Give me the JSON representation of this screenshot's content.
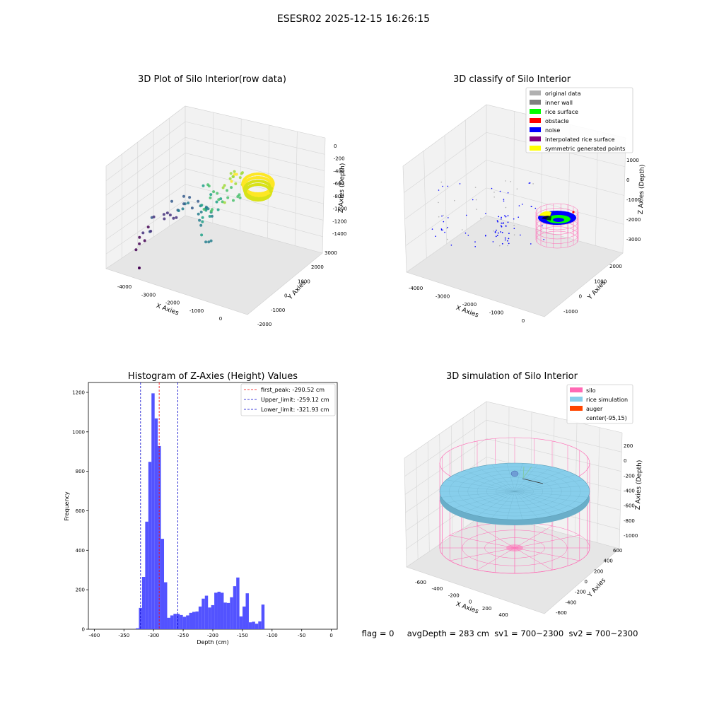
{
  "figure_title": "ESESR02 2025-12-15 16:26:15",
  "status_line": "flag = 0     avgDepth = 283 cm  sv1 = 700~2300  sv2 = 700~2300",
  "chart_data": [
    {
      "type": "scatter3d",
      "title": "3D Plot of Silo Interior(row data)",
      "xlabel": "X Axies",
      "ylabel": "Y Axies",
      "zlabel": "Z Axies (Depth)",
      "x_ticks": [
        "-4000",
        "-3000",
        "-2000",
        "-1000",
        "0"
      ],
      "y_ticks": [
        "-2000",
        "-1000",
        "0",
        "1000",
        "2000",
        "3000"
      ],
      "z_ticks": [
        "0",
        "-200",
        "-400",
        "-600",
        "-800",
        "-1000",
        "-1200",
        "-1400"
      ],
      "colormap": "viridis",
      "xlim": [
        -4500,
        500
      ],
      "ylim": [
        -2000,
        3000
      ],
      "zlim": [
        -1500,
        0
      ]
    },
    {
      "type": "scatter3d",
      "title": "3D classify of Silo Interior",
      "xlabel": "X Axies",
      "ylabel": "Y Axies",
      "zlabel": "Z Axies (Depth)",
      "x_ticks": [
        "-4000",
        "-3000",
        "-2000",
        "-1000",
        "0"
      ],
      "y_ticks": [
        "-1000",
        "0",
        "1000",
        "2000"
      ],
      "z_ticks": [
        "1000",
        "0",
        "-1000",
        "-2000",
        "-3000"
      ],
      "legend_position": "top-right",
      "legend": [
        {
          "label": "original data",
          "color": "#b0b0b0"
        },
        {
          "label": "inner wall",
          "color": "#808080"
        },
        {
          "label": "rice surface",
          "color": "#00ff00"
        },
        {
          "label": "obstacle",
          "color": "#ff0000"
        },
        {
          "label": "noise",
          "color": "#0000ff"
        },
        {
          "label": "interpolated rice surface",
          "color": "#800080"
        },
        {
          "label": "symmetric generated points",
          "color": "#ffff00"
        }
      ]
    },
    {
      "type": "histogram",
      "title": "Histogram of Z-Axies (Height) Values",
      "xlabel": "Depth (cm)",
      "ylabel": "Frequency",
      "xlim": [
        -410,
        10
      ],
      "ylim": [
        0,
        1250
      ],
      "x_ticks": [
        -400,
        -350,
        -300,
        -250,
        -200,
        -150,
        -100,
        -50,
        0
      ],
      "y_ticks": [
        0,
        200,
        400,
        600,
        800,
        1000,
        1200
      ],
      "bar_color": "#4a4aff",
      "bin_start": -330,
      "bin_width": 5.3,
      "counts": [
        5,
        108,
        265,
        545,
        848,
        1195,
        1068,
        928,
        458,
        238,
        58,
        70,
        78,
        78,
        72,
        63,
        70,
        83,
        88,
        90,
        115,
        155,
        170,
        110,
        122,
        185,
        190,
        185,
        135,
        133,
        162,
        218,
        262,
        65,
        115,
        182,
        35,
        38,
        28,
        40,
        125
      ],
      "vlines": [
        {
          "label": "first_peak: -290.52 cm",
          "x": -290.52,
          "color": "#ff0000"
        },
        {
          "label": "Upper_limit: -259.12 cm",
          "x": -259.12,
          "color": "#0000cc"
        },
        {
          "label": "Lower_limit: -321.93 cm",
          "x": -321.93,
          "color": "#0000cc"
        }
      ],
      "legend_position": "top-right"
    },
    {
      "type": "surface3d",
      "title": "3D simulation of Silo Interior",
      "xlabel": "X Axies",
      "ylabel": "Y Axies",
      "zlabel": "Z Axies (Depth)",
      "x_ticks": [
        "-600",
        "-400",
        "-200",
        "0",
        "200",
        "400"
      ],
      "y_ticks": [
        "-600",
        "-400",
        "-200",
        "0",
        "200",
        "400",
        "600"
      ],
      "z_ticks": [
        "200",
        "0",
        "-200",
        "-400",
        "-600",
        "-800",
        "-1000"
      ],
      "legend_position": "top-right",
      "legend": [
        {
          "label": "silo",
          "color": "#ff69b4"
        },
        {
          "label": "rice simulation",
          "color": "#87ceeb"
        },
        {
          "label": "auger",
          "color": "#ff4500"
        },
        {
          "label": "center(-95,15)",
          "color": "#ffffff"
        }
      ]
    }
  ]
}
